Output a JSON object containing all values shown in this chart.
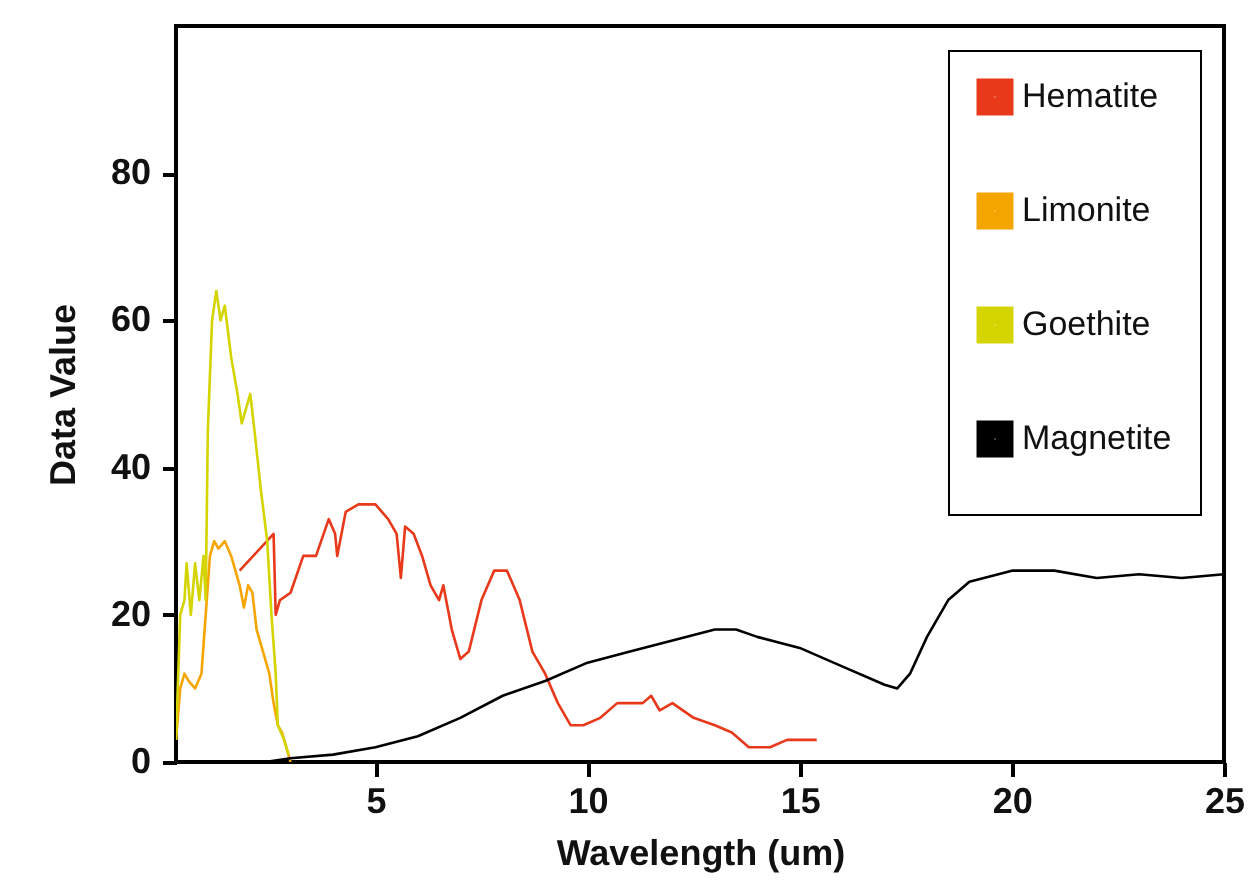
{
  "chart_data": {
    "type": "line",
    "xlabel": "Wavelength (um)",
    "ylabel": "Data Value",
    "xlim": [
      0.3,
      25
    ],
    "ylim": [
      0,
      100
    ],
    "xticks": [
      5,
      10,
      15,
      20,
      25
    ],
    "yticks": [
      0,
      20,
      40,
      60,
      80
    ],
    "grid": false,
    "legend": "top right",
    "marker": "none",
    "line_style": "solid",
    "series": [
      {
        "name": "Hematite",
        "color": "#e8391a",
        "x": [
          1.8,
          2.6,
          2.65,
          2.75,
          3.0,
          3.3,
          3.6,
          3.9,
          4.05,
          4.1,
          4.3,
          4.6,
          5.0,
          5.3,
          5.5,
          5.6,
          5.7,
          5.9,
          6.1,
          6.3,
          6.5,
          6.6,
          6.8,
          7.0,
          7.2,
          7.5,
          7.8,
          8.1,
          8.4,
          8.7,
          9.0,
          9.3,
          9.6,
          9.9,
          10.3,
          10.7,
          11.0,
          11.3,
          11.5,
          11.7,
          12.0,
          12.5,
          13.0,
          13.4,
          13.8,
          14.3,
          14.7,
          15.4
        ],
        "values": [
          26,
          31,
          20,
          22,
          23,
          28,
          28,
          33,
          31,
          28,
          34,
          35,
          35,
          33,
          31,
          25,
          32,
          31,
          28,
          24,
          22,
          24,
          18,
          14,
          15,
          22,
          26,
          26,
          22,
          15,
          12,
          8,
          5,
          5,
          6,
          8,
          8,
          8,
          9,
          7,
          8,
          6,
          5,
          4,
          2,
          2,
          3,
          3
        ]
      },
      {
        "name": "Limonite",
        "color": "#f5a500",
        "x": [
          0.3,
          0.4,
          0.5,
          0.6,
          0.75,
          0.9,
          1.0,
          1.1,
          1.2,
          1.3,
          1.45,
          1.6,
          1.8,
          1.9,
          2.0,
          2.1,
          2.2,
          2.35,
          2.5,
          2.6,
          2.7,
          2.8,
          2.9,
          3.0
        ],
        "values": [
          3,
          10,
          12,
          11,
          10,
          12,
          20,
          28,
          30,
          29,
          30,
          28,
          24,
          21,
          24,
          23,
          18,
          15,
          12,
          8,
          5,
          4,
          2,
          0
        ]
      },
      {
        "name": "Goethite",
        "color": "#d4d400",
        "x": [
          0.3,
          0.4,
          0.5,
          0.55,
          0.65,
          0.75,
          0.85,
          0.95,
          1.0,
          1.05,
          1.15,
          1.25,
          1.35,
          1.45,
          1.6,
          1.75,
          1.85,
          1.95,
          2.05,
          2.15,
          2.3,
          2.45,
          2.55,
          2.65,
          2.7,
          2.85,
          2.95
        ],
        "values": [
          3,
          20,
          22,
          27,
          20,
          27,
          22,
          28,
          22,
          45,
          60,
          64,
          60,
          62,
          55,
          50,
          46,
          48,
          50,
          45,
          37,
          30,
          20,
          12,
          5,
          3,
          1
        ]
      },
      {
        "name": "Magnetite",
        "color": "#000000",
        "x": [
          2.4,
          3,
          4,
          5,
          6,
          7,
          8,
          9,
          10,
          11,
          12,
          13,
          13.5,
          14,
          15,
          16,
          17,
          17.3,
          17.6,
          18,
          18.5,
          19,
          20,
          21,
          22,
          23,
          24,
          25
        ],
        "values": [
          0,
          0.5,
          1,
          2,
          3.5,
          6,
          9,
          11,
          13.5,
          15,
          16.5,
          18,
          18,
          17,
          15.5,
          13,
          10.5,
          10,
          12,
          17,
          22,
          24.5,
          26,
          26,
          25,
          25.5,
          25,
          25.5
        ]
      }
    ]
  }
}
